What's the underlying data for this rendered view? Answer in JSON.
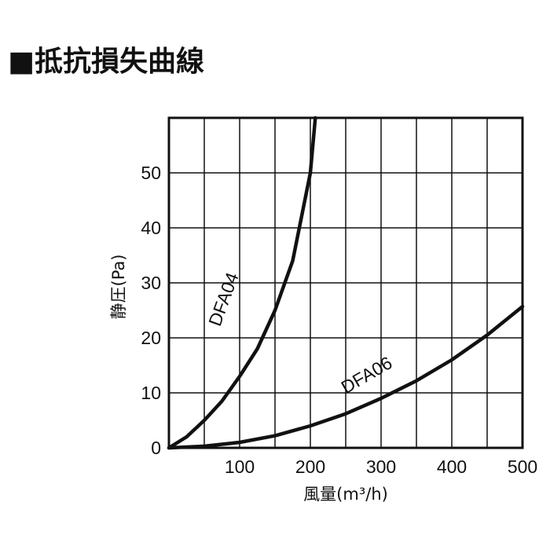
{
  "chart_data": {
    "type": "line",
    "title": "■抵抗損失曲線",
    "x_label": "風量(m³/h)",
    "y_label": "静圧(Pa)",
    "xlim": [
      0,
      500
    ],
    "ylim": [
      0,
      60
    ],
    "xticks": [
      100,
      200,
      300,
      400,
      500
    ],
    "yticks": [
      0,
      10,
      20,
      30,
      40,
      50
    ],
    "grid": true,
    "series": [
      {
        "name": "DFA04",
        "color": "#111111",
        "x": [
          0,
          25,
          50,
          75,
          100,
          125,
          150,
          175,
          200,
          207
        ],
        "values": [
          0,
          2,
          5,
          8.5,
          13,
          18,
          25,
          34,
          50,
          60
        ]
      },
      {
        "name": "DFA06",
        "color": "#111111",
        "x": [
          0,
          50,
          100,
          150,
          200,
          250,
          300,
          350,
          400,
          450,
          500
        ],
        "values": [
          0,
          0.3,
          1,
          2.2,
          4,
          6.2,
          9,
          12.2,
          16,
          20.5,
          25.7
        ]
      }
    ]
  }
}
